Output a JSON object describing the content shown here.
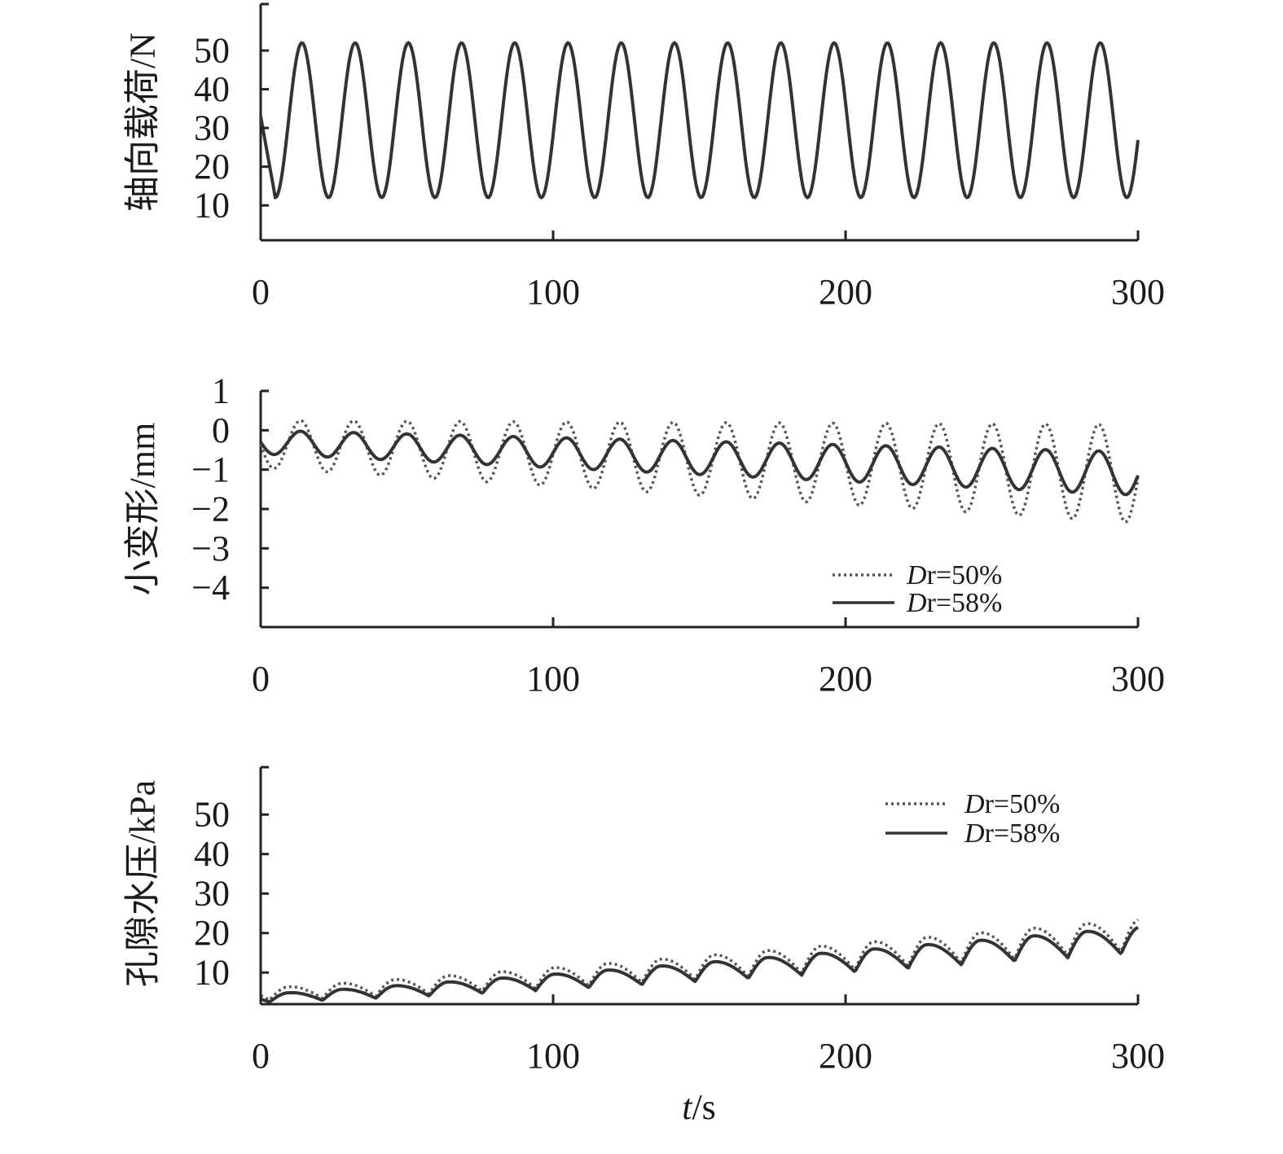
{
  "chart_data": [
    {
      "type": "line",
      "ylabel": "轴向载荷/N",
      "xlabel": "",
      "x_ticks": [
        "0",
        "100",
        "200",
        "300"
      ],
      "y_ticks": [
        "10",
        "20",
        "30",
        "40",
        "50"
      ],
      "xlim": [
        0,
        300
      ],
      "ylim": [
        1,
        62
      ],
      "grid": false,
      "series": [
        {
          "kind": "axial",
          "style": "solid",
          "color": "#333333",
          "start": 33,
          "first_min": 12,
          "mean": 32,
          "amplitude": 20,
          "period": 18.2,
          "phase_zero": 5
        }
      ]
    },
    {
      "type": "line",
      "ylabel": "小变形/mm",
      "xlabel": "",
      "x_ticks": [
        "0",
        "100",
        "200",
        "300"
      ],
      "y_ticks": [
        "1",
        "0",
        "−1",
        "−2",
        "−3",
        "−4"
      ],
      "xlim": [
        0,
        300
      ],
      "ylim": [
        -5,
        1
      ],
      "grid": false,
      "legend": {
        "position": "bottom-right",
        "entries": [
          {
            "label_italic": "D",
            "label_rest": "r=50%",
            "style": "dotted"
          },
          {
            "label_italic": "D",
            "label_rest": "r=58%",
            "style": "solid"
          }
        ]
      },
      "series": [
        {
          "name": "Dr=50%",
          "kind": "deform",
          "style": "dotted",
          "color": "#555555",
          "mean_start": -0.35,
          "mean_end": -1.1,
          "amp_start": 0.6,
          "amp_end": 1.25,
          "period": 18.2
        },
        {
          "name": "Dr=58%",
          "kind": "deform",
          "style": "solid",
          "color": "#333333",
          "mean_start": -0.3,
          "mean_end": -1.1,
          "amp_start": 0.3,
          "amp_end": 0.55,
          "period": 18.2
        }
      ]
    },
    {
      "type": "line",
      "ylabel": "孔隙水压/kPa",
      "xlabel": "t/s",
      "x_ticks": [
        "0",
        "100",
        "200",
        "300"
      ],
      "y_ticks": [
        "10",
        "20",
        "30",
        "40",
        "50"
      ],
      "xlim": [
        0,
        300
      ],
      "ylim": [
        2,
        62
      ],
      "grid": false,
      "legend": {
        "position": "top-right",
        "entries": [
          {
            "label_italic": "D",
            "label_rest": "r=50%",
            "style": "dotted"
          },
          {
            "label_italic": "D",
            "label_rest": "r=58%",
            "style": "solid"
          }
        ]
      },
      "series": [
        {
          "name": "Dr=50%",
          "kind": "pore",
          "style": "dotted",
          "color": "#555555",
          "base_start": 3,
          "base_end": 15.5,
          "peak_start": 6,
          "peak_end": 23.5,
          "period": 18.2
        },
        {
          "name": "Dr=58%",
          "kind": "pore",
          "style": "solid",
          "color": "#333333",
          "base_start": 2.5,
          "base_end": 15,
          "peak_start": 4.5,
          "peak_end": 21.5,
          "period": 18.2
        }
      ]
    }
  ],
  "x_axis_title": {
    "italic": "t",
    "rest": "/s"
  }
}
